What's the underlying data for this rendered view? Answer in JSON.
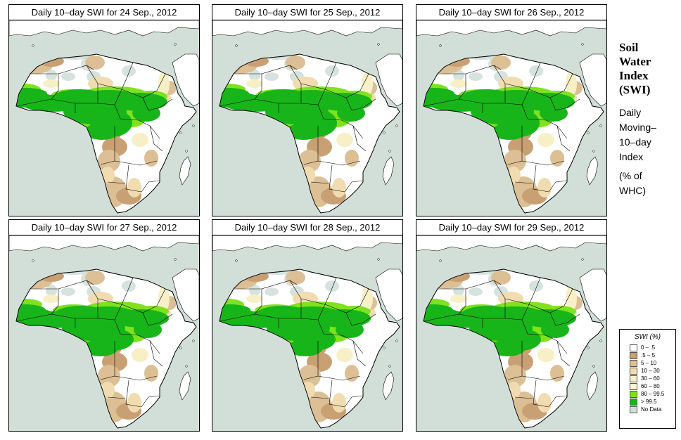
{
  "panels": [
    {
      "title": "Daily 10–day SWI for  24 Sep., 2012",
      "shift": 0
    },
    {
      "title": "Daily 10–day SWI for  25 Sep., 2012",
      "shift": 1
    },
    {
      "title": "Daily 10–day SWI for  26 Sep., 2012",
      "shift": 2
    },
    {
      "title": "Daily 10–day SWI for  27 Sep., 2012",
      "shift": 3
    },
    {
      "title": "Daily 10–day SWI for  28 Sep., 2012",
      "shift": 4
    },
    {
      "title": "Daily 10–day SWI for  29 Sep., 2012",
      "shift": 5
    }
  ],
  "sidebar": {
    "title_lines": [
      "Soil",
      "Water",
      "Index",
      "(SWI)"
    ],
    "desc_lines": [
      "Daily",
      "Moving–",
      "10–day",
      "Index"
    ],
    "unit_lines": [
      "(% of",
      " WHC)"
    ]
  },
  "legend": {
    "title": "SWI (%)",
    "items": [
      {
        "label": "0 – .5",
        "color": "#ffffff"
      },
      {
        "label": ".5 – 5",
        "color": "#c8a074"
      },
      {
        "label": "5 – 10",
        "color": "#dcbf94"
      },
      {
        "label": "10 – 30",
        "color": "#f0dcb0"
      },
      {
        "label": "30 – 60",
        "color": "#f7efc6"
      },
      {
        "label": "60 – 80",
        "color": "#fdfcd6"
      },
      {
        "label": "80 – 99.5",
        "color": "#7ee21e"
      },
      {
        "label": "> 99.5",
        "color": "#17b51a"
      },
      {
        "label": "No Data",
        "color": "#d2dfd9"
      }
    ]
  }
}
